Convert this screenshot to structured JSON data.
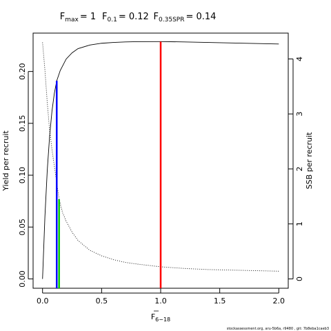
{
  "chart_data": {
    "type": "line",
    "title": {
      "fmax": {
        "label": "F",
        "sub": "max",
        "value": "= 1"
      },
      "f01": {
        "label": "F",
        "sub": "0.1",
        "value": "= 0.12"
      },
      "fspr": {
        "label": "F",
        "sub": "0.35SPR",
        "value": "= 0.14"
      }
    },
    "xlabel": {
      "main": "F",
      "sub": "6−18"
    },
    "ylabel_left": "Yield per recruit",
    "ylabel_right": "SSB per recruit",
    "xlim": [
      -0.08,
      2.08
    ],
    "ylim_left": [
      -0.009,
      0.237
    ],
    "ylim_right": [
      -0.17,
      4.47
    ],
    "x_ticks": [
      0,
      0.5,
      1,
      1.5,
      2
    ],
    "x_tick_labels": [
      "0.0",
      "0.5",
      "1.0",
      "1.5",
      "2.0"
    ],
    "y_left_ticks": [
      0,
      0.05,
      0.1,
      0.15,
      0.2
    ],
    "y_left_tick_labels": [
      "0.00",
      "0.05",
      "0.10",
      "0.15",
      "0.20"
    ],
    "y_right_ticks": [
      0,
      1,
      2,
      3,
      4
    ],
    "y_right_tick_labels": [
      "0",
      "1",
      "2",
      "3",
      "4"
    ],
    "series": [
      {
        "name": "Yield per recruit",
        "axis": "left",
        "style": "solid",
        "color": "#000000",
        "x": [
          0,
          0.02,
          0.04,
          0.06,
          0.08,
          0.1,
          0.12,
          0.15,
          0.2,
          0.25,
          0.3,
          0.4,
          0.5,
          0.6,
          0.7,
          0.8,
          1.0,
          1.2,
          1.4,
          1.6,
          1.8,
          2.0
        ],
        "y": [
          0,
          0.06,
          0.105,
          0.138,
          0.162,
          0.179,
          0.191,
          0.201,
          0.212,
          0.218,
          0.222,
          0.2255,
          0.2272,
          0.228,
          0.2285,
          0.2287,
          0.2288,
          0.2285,
          0.228,
          0.2275,
          0.227,
          0.2265
        ]
      },
      {
        "name": "SSB per recruit",
        "axis": "right",
        "style": "dotted",
        "color": "#000000",
        "x": [
          0,
          0.02,
          0.04,
          0.06,
          0.08,
          0.1,
          0.12,
          0.14,
          0.17,
          0.2,
          0.25,
          0.3,
          0.4,
          0.5,
          0.6,
          0.7,
          0.8,
          1.0,
          1.2,
          1.4,
          1.6,
          1.8,
          2.0
        ],
        "y": [
          4.3,
          3.8,
          3.2,
          2.7,
          2.35,
          2.05,
          1.75,
          1.45,
          1.2,
          1.05,
          0.85,
          0.7,
          0.52,
          0.42,
          0.35,
          0.3,
          0.27,
          0.22,
          0.19,
          0.17,
          0.16,
          0.15,
          0.14
        ]
      }
    ],
    "reference_lines": [
      {
        "name": "Fmax",
        "x": 1.0,
        "axis": "left",
        "y_end": 0.2288,
        "color": "#ff0000"
      },
      {
        "name": "F0.1",
        "x": 0.12,
        "axis": "left",
        "y_end": 0.191,
        "color": "#0000ff"
      },
      {
        "name": "F0.35SPR",
        "x": 0.14,
        "axis": "right",
        "y_end": 1.45,
        "color": "#00cc00"
      }
    ],
    "grid": false,
    "legend": "none"
  },
  "footer": "stockassessment.org, aru-5b6a, r9480 , git: 7b8eba1caeb3"
}
